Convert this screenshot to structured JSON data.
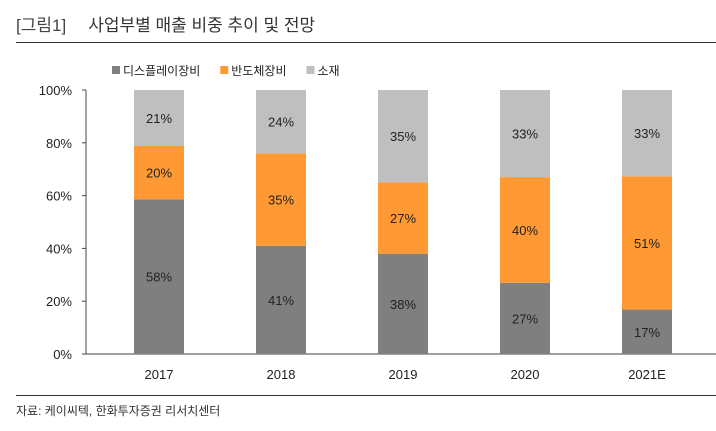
{
  "header": {
    "figure_label": "[그림1]",
    "title": "사업부별 매출 비중 추이 및 전망"
  },
  "source": "자료: 케이씨텍, 한화투자증권 리서치센터",
  "chart_data": {
    "type": "bar",
    "stacked": true,
    "title": "사업부별 매출 비중 추이 및 전망",
    "categories": [
      "2017",
      "2018",
      "2019",
      "2020",
      "2021E"
    ],
    "series": [
      {
        "name": "디스플레이장비",
        "color": "#7f7f7f",
        "values": [
          58,
          41,
          38,
          27,
          17
        ]
      },
      {
        "name": "반도체장비",
        "color": "#ff9933",
        "values": [
          20,
          35,
          27,
          40,
          51
        ]
      },
      {
        "name": "소재",
        "color": "#bfbfbf",
        "values": [
          21,
          24,
          35,
          33,
          33
        ]
      }
    ],
    "data_label_suffix": "%",
    "ylim": [
      0,
      100
    ],
    "yticks": [
      "0%",
      "20%",
      "40%",
      "60%",
      "80%",
      "100%"
    ],
    "xlabel": "",
    "ylabel": "",
    "grid": false,
    "legend": "top"
  }
}
